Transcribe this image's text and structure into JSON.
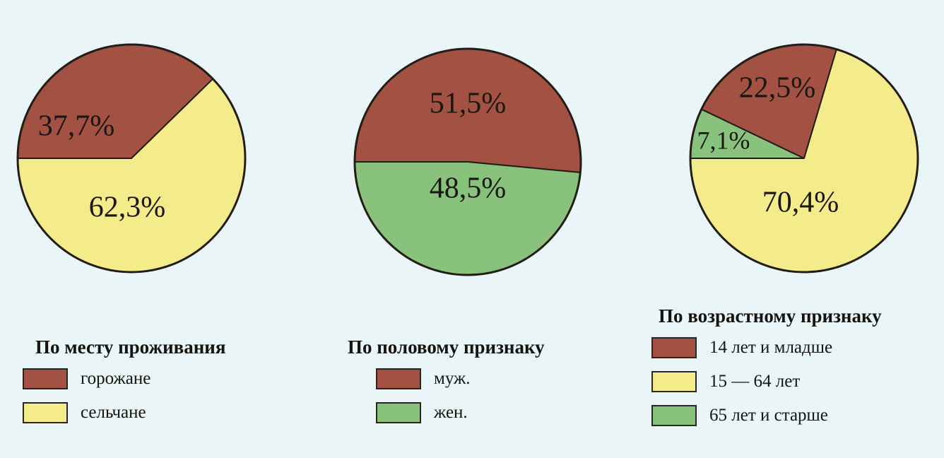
{
  "colors": {
    "red": "#a35142",
    "yellow": "#f4ec8a",
    "green": "#89c27d",
    "outline": "#231d17"
  },
  "chart_data": [
    {
      "type": "pie",
      "title": "По месту проживания",
      "slices": [
        {
          "label": "горожане",
          "value": 37.7,
          "text": "37,7%",
          "color": "#a35142"
        },
        {
          "label": "сельчане",
          "value": 62.3,
          "text": "62,3%",
          "color": "#f4ec8a"
        }
      ]
    },
    {
      "type": "pie",
      "title": "По половому признаку",
      "slices": [
        {
          "label": "муж.",
          "value": 51.5,
          "text": "51,5%",
          "color": "#a35142"
        },
        {
          "label": "жен.",
          "value": 48.5,
          "text": "48,5%",
          "color": "#89c27d"
        }
      ]
    },
    {
      "type": "pie",
      "title": "По возрастному признаку",
      "slices": [
        {
          "label": "14 лет и младше",
          "value": 22.5,
          "text": "22,5%",
          "color": "#a35142"
        },
        {
          "label": "15 — 64 лет",
          "value": 70.4,
          "text": "70,4%",
          "color": "#f4ec8a"
        },
        {
          "label": "65 лет и старше",
          "value": 7.1,
          "text": "7,1%",
          "color": "#89c27d"
        }
      ]
    }
  ]
}
